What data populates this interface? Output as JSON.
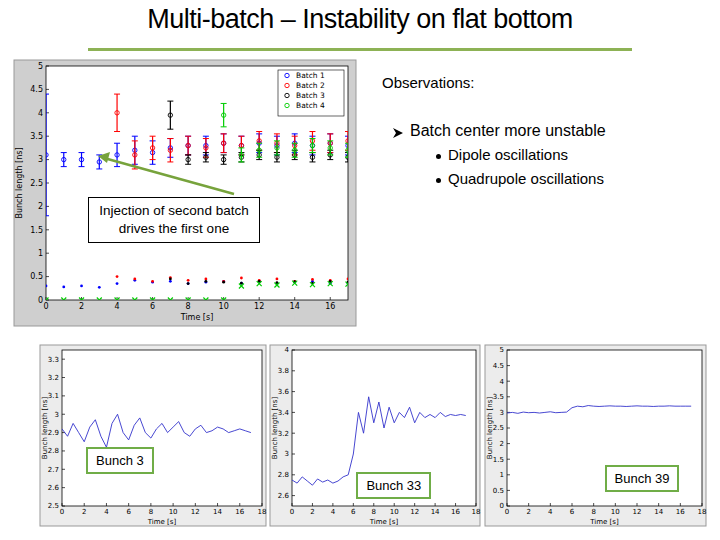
{
  "slide": {
    "title": "Multi-batch – Instability on flat bottom",
    "observations": {
      "heading": "Observations:",
      "point": "Batch center more unstable",
      "subpoints": [
        "Dipole oscillations",
        "Quadrupole oscillations"
      ]
    }
  },
  "chart_data": [
    {
      "type": "scatter",
      "x_label": "Time [s]",
      "y_label": "Bunch length [ns]",
      "annotation": "Injection of second batch drives the first one",
      "xlim": [
        0,
        17
      ],
      "xticks": [
        0,
        2,
        4,
        6,
        8,
        10,
        12,
        14,
        16
      ],
      "ylim": [
        0,
        5
      ],
      "yticks": [
        0,
        0.5,
        1,
        1.5,
        2,
        2.5,
        3,
        3.5,
        4,
        4.5,
        5
      ],
      "grid": false,
      "legend": "upper right",
      "series": [
        {
          "name": "Batch 1",
          "color": "#0000ff",
          "marker": "circle",
          "x": [
            0,
            1,
            2,
            3,
            4,
            5,
            6,
            7,
            8,
            9,
            10,
            11,
            12,
            13,
            14,
            15,
            16,
            17
          ],
          "values": [
            3.1,
            3.0,
            3.0,
            2.95,
            3.1,
            3.2,
            3.15,
            3.25,
            3.3,
            3.3,
            3.35,
            3.3,
            3.35,
            3.3,
            3.35,
            3.3,
            3.35,
            3.3
          ],
          "error": [
            1.3,
            0.15,
            0.15,
            0.15,
            0.25,
            0.3,
            0.25,
            0.2,
            0.2,
            0.2,
            0.2,
            0.2,
            0.2,
            0.2,
            0.2,
            0.2,
            0.2,
            0.2
          ]
        },
        {
          "name": "Batch 2",
          "color": "#ff0000",
          "marker": "circle",
          "x": [
            4,
            5,
            6,
            7,
            8,
            9,
            10,
            11,
            12,
            13,
            14,
            15,
            16,
            17
          ],
          "values": [
            4.0,
            3.1,
            3.25,
            3.2,
            3.3,
            3.25,
            3.35,
            3.3,
            3.4,
            3.35,
            3.3,
            3.4,
            3.35,
            3.4
          ],
          "error": [
            0.4,
            0.3,
            0.25,
            0.25,
            0.2,
            0.2,
            0.2,
            0.2,
            0.2,
            0.2,
            0.2,
            0.2,
            0.2,
            0.2
          ]
        },
        {
          "name": "Batch 3",
          "color": "#000000",
          "marker": "circle",
          "x": [
            7,
            8,
            9,
            10,
            11,
            12,
            13,
            14,
            15,
            16,
            17
          ],
          "values": [
            3.95,
            3.0,
            3.05,
            3.0,
            3.05,
            3.1,
            3.05,
            3.1,
            3.05,
            3.1,
            3.05
          ],
          "error": [
            0.3,
            0.1,
            0.1,
            0.1,
            0.1,
            0.1,
            0.1,
            0.1,
            0.1,
            0.1,
            0.1
          ]
        },
        {
          "name": "Batch 4",
          "color": "#00cc00",
          "marker": "circle",
          "x": [
            10,
            11,
            12,
            13,
            14,
            15,
            16,
            17
          ],
          "values": [
            3.95,
            3.1,
            3.2,
            3.25,
            3.2,
            3.3,
            3.25,
            3.2
          ],
          "error": [
            0.25,
            0.15,
            0.15,
            0.15,
            0.15,
            0.15,
            0.15,
            0.15
          ]
        },
        {
          "color": "#0000ff",
          "marker": "dot",
          "x": [
            0,
            1,
            2,
            3,
            4,
            5,
            6,
            7,
            8,
            9,
            10,
            11,
            12,
            13,
            14,
            15,
            16,
            17
          ],
          "values": [
            0.3,
            0.28,
            0.3,
            0.27,
            0.35,
            0.42,
            0.38,
            0.4,
            0.35,
            0.38,
            0.4,
            0.36,
            0.4,
            0.35,
            0.38,
            0.4,
            0.36,
            0.35
          ]
        },
        {
          "color": "#ff0000",
          "marker": "dot",
          "x": [
            4,
            5,
            6,
            7,
            8,
            9,
            10,
            11,
            12,
            13,
            14,
            15,
            16,
            17
          ],
          "values": [
            0.5,
            0.45,
            0.4,
            0.48,
            0.42,
            0.45,
            0.4,
            0.47,
            0.42,
            0.45,
            0.4,
            0.44,
            0.42,
            0.45
          ]
        },
        {
          "color": "#000000",
          "marker": "dot",
          "x": [
            7,
            8,
            9,
            10,
            11,
            12,
            13,
            14,
            15,
            16,
            17
          ],
          "values": [
            0.45,
            0.35,
            0.4,
            0.38,
            0.36,
            0.4,
            0.37,
            0.39,
            0.36,
            0.4,
            0.38
          ]
        },
        {
          "color": "#00cc00",
          "marker": "cross",
          "x": [
            0,
            1,
            2,
            3,
            4,
            5,
            6,
            7,
            8,
            9,
            10,
            11,
            12,
            13,
            14,
            15,
            16,
            17
          ],
          "values": [
            0,
            0,
            0,
            0,
            0,
            0,
            0,
            0,
            0,
            0,
            0,
            0.3,
            0.35,
            0.32,
            0.36,
            0.33,
            0.35,
            0.34
          ]
        }
      ]
    },
    {
      "type": "line",
      "x_label": "Time [s]",
      "y_label": "Bunch length [ns]",
      "annotation": "Bunch 3",
      "xlim": [
        0,
        18
      ],
      "xticks": [
        0,
        2,
        4,
        6,
        8,
        10,
        12,
        14,
        16,
        18
      ],
      "ylim": [
        2.5,
        3.35
      ],
      "yticks": [
        2.5,
        2.6,
        2.7,
        2.8,
        2.9,
        3,
        3.1,
        3.2,
        3.3
      ],
      "grid": false,
      "series": [
        {
          "color": "#3333cc",
          "x": [
            0,
            0.5,
            1,
            1.5,
            2,
            2.5,
            3,
            3.5,
            4,
            4.5,
            5,
            5.5,
            6,
            6.5,
            7,
            7.5,
            8,
            8.5,
            9,
            9.5,
            10,
            10.5,
            11,
            11.5,
            12,
            12.5,
            13,
            13.5,
            14,
            14.5,
            15,
            15.5,
            16,
            16.5,
            17
          ],
          "values": [
            2.92,
            2.88,
            2.95,
            2.9,
            2.85,
            2.93,
            2.97,
            2.88,
            2.82,
            2.95,
            3.0,
            2.9,
            2.86,
            2.94,
            2.98,
            2.9,
            2.87,
            2.92,
            2.95,
            2.9,
            2.93,
            2.96,
            2.9,
            2.88,
            2.92,
            2.94,
            2.9,
            2.91,
            2.93,
            2.92,
            2.9,
            2.91,
            2.92,
            2.91,
            2.9
          ]
        }
      ]
    },
    {
      "type": "line",
      "x_label": "Time [s]",
      "y_label": "Bunch length [ns]",
      "annotation": "Bunch 33",
      "xlim": [
        0,
        18
      ],
      "xticks": [
        0,
        2,
        4,
        6,
        8,
        10,
        12,
        14,
        16,
        18
      ],
      "ylim": [
        2.5,
        4
      ],
      "yticks": [
        2.6,
        2.8,
        3,
        3.2,
        3.4,
        3.6,
        3.8,
        4
      ],
      "grid": false,
      "series": [
        {
          "color": "#3333cc",
          "x": [
            0,
            0.5,
            1,
            1.5,
            2,
            2.5,
            3,
            3.5,
            4,
            4.5,
            5,
            5.5,
            6,
            6.5,
            7,
            7.5,
            8,
            8.5,
            9,
            9.5,
            10,
            10.5,
            11,
            11.5,
            12,
            12.5,
            13,
            13.5,
            14,
            14.5,
            15,
            15.5,
            16,
            16.5,
            17
          ],
          "values": [
            2.75,
            2.72,
            2.78,
            2.74,
            2.7,
            2.76,
            2.73,
            2.75,
            2.72,
            2.74,
            2.78,
            2.8,
            3.0,
            3.4,
            3.2,
            3.55,
            3.3,
            3.5,
            3.25,
            3.45,
            3.3,
            3.4,
            3.35,
            3.45,
            3.3,
            3.4,
            3.35,
            3.38,
            3.35,
            3.4,
            3.36,
            3.38,
            3.37,
            3.38,
            3.37
          ]
        }
      ]
    },
    {
      "type": "line",
      "x_label": "Time [s]",
      "y_label": "Bunch length [ns]",
      "annotation": "Bunch 39",
      "xlim": [
        0,
        18
      ],
      "xticks": [
        0,
        2,
        4,
        6,
        8,
        10,
        12,
        14,
        16,
        18
      ],
      "ylim": [
        0,
        5
      ],
      "yticks": [
        0,
        0.5,
        1,
        1.5,
        2,
        2.5,
        3,
        3.5,
        4,
        4.5,
        5
      ],
      "grid": false,
      "series": [
        {
          "color": "#3333cc",
          "x": [
            0,
            0.5,
            1,
            1.5,
            2,
            2.5,
            3,
            3.5,
            4,
            4.5,
            5,
            5.5,
            6,
            6.5,
            7,
            7.5,
            8,
            8.5,
            9,
            9.5,
            10,
            10.5,
            11,
            11.5,
            12,
            12.5,
            13,
            13.5,
            14,
            14.5,
            15,
            15.5,
            16,
            16.5,
            17
          ],
          "values": [
            2.98,
            3.0,
            2.97,
            3.01,
            2.99,
            3.0,
            2.98,
            3.0,
            3.02,
            2.99,
            3.0,
            3.01,
            3.15,
            3.2,
            3.18,
            3.22,
            3.2,
            3.19,
            3.2,
            3.21,
            3.2,
            3.2,
            3.19,
            3.2,
            3.21,
            3.2,
            3.2,
            3.19,
            3.2,
            3.2,
            3.21,
            3.2,
            3.2,
            3.2,
            3.2
          ]
        }
      ]
    }
  ]
}
